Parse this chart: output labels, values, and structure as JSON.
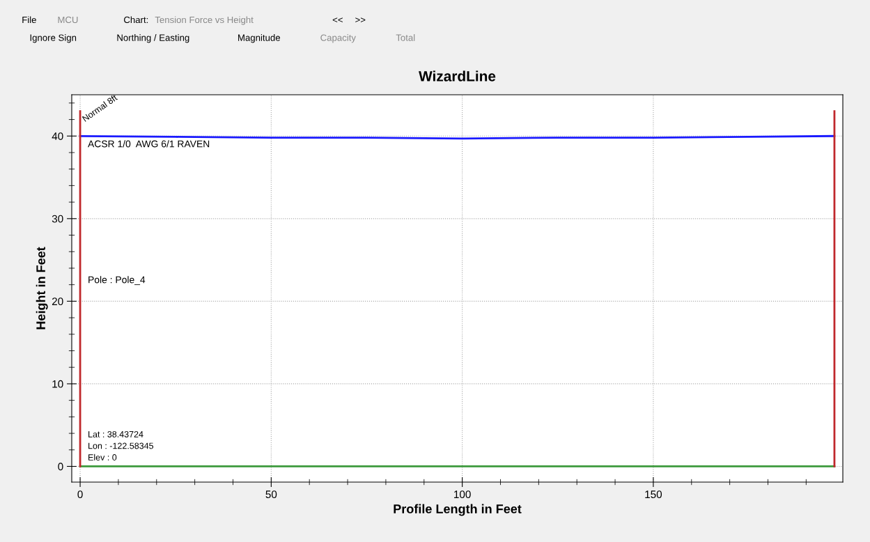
{
  "chart_data": {
    "type": "line",
    "title": "WizardLine",
    "xlabel": "Profile Length in Feet",
    "ylabel": "Height in Feet",
    "series": [
      {
        "name": "ACSR 1/0  AWG 6/1 RAVEN",
        "color": "#1a1aff",
        "x": [
          0,
          25,
          50,
          75,
          100,
          125,
          150,
          175,
          197.4
        ],
        "values": [
          40,
          39.9,
          39.8,
          39.8,
          39.7,
          39.8,
          39.8,
          39.9,
          40
        ]
      },
      {
        "color": "#3c9a3c",
        "x": [
          0,
          197.4
        ],
        "values": [
          0,
          0
        ]
      },
      {
        "name": "Pole : Pole_4",
        "color": "#c0282d",
        "x": [
          0,
          0
        ],
        "values": [
          0,
          43
        ]
      },
      {
        "color": "#c0282d",
        "x": [
          197.4,
          197.4
        ],
        "values": [
          0,
          43
        ]
      }
    ],
    "xlim": [
      -2.2,
      199.6
    ],
    "ylim": [
      -1.9,
      45
    ],
    "xticks": [
      0,
      50,
      100,
      150
    ],
    "yticks": [
      0,
      10,
      20,
      30,
      40
    ],
    "grid": true,
    "marker": "none",
    "line_style": "solid",
    "annotations": [
      "Normal 8ft",
      "Lat : 38.43724",
      "Lon : -122.58345",
      "Elev : 0",
      "File",
      "MCU",
      "Chart:",
      "Tension Force vs Height",
      "<<",
      ">>",
      "Ignore Sign",
      "Northing / Easting",
      "Magnitude",
      "Capacity",
      "Total"
    ]
  }
}
